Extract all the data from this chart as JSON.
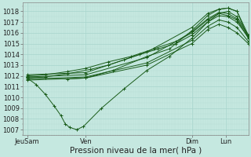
{
  "xlabel": "Pression niveau de la mer( hPa )",
  "ylim": [
    1006.5,
    1018.8
  ],
  "yticks": [
    1007,
    1008,
    1009,
    1010,
    1011,
    1012,
    1013,
    1014,
    1015,
    1016,
    1017,
    1018
  ],
  "xlim": [
    0,
    100
  ],
  "xtick_labels": [
    "JeuSam",
    "Ven",
    "Dim",
    "Lun"
  ],
  "xtick_positions": [
    2,
    28,
    75,
    90
  ],
  "bg_color": "#c5e8e0",
  "grid_color_major": "#a8d5cc",
  "grid_color_minor": "#b8ddd6",
  "line_color": "#1a5c1a",
  "marker": "+",
  "marker_size": 2.5,
  "line_width": 0.7,
  "xlabel_fontsize": 7.5,
  "tick_fontsize": 6,
  "lines": [
    {
      "x": [
        2,
        10,
        20,
        28,
        40,
        55,
        65,
        75,
        82,
        87,
        91,
        95,
        100
      ],
      "y": [
        1011.9,
        1011.8,
        1011.7,
        1011.8,
        1012.5,
        1013.8,
        1014.5,
        1016.2,
        1017.6,
        1018.2,
        1018.3,
        1018.0,
        1015.5
      ]
    },
    {
      "x": [
        2,
        6,
        10,
        14,
        17,
        19,
        21,
        24,
        27,
        35,
        45,
        55,
        65,
        75,
        82,
        87,
        91,
        95,
        100
      ],
      "y": [
        1011.8,
        1011.2,
        1010.3,
        1009.2,
        1008.3,
        1007.5,
        1007.2,
        1007.0,
        1007.3,
        1009.0,
        1010.8,
        1012.5,
        1013.8,
        1015.5,
        1017.0,
        1017.8,
        1018.0,
        1017.5,
        1015.8
      ]
    },
    {
      "x": [
        2,
        28,
        55,
        75,
        82,
        87,
        91,
        95,
        100
      ],
      "y": [
        1012.1,
        1012.3,
        1014.2,
        1016.5,
        1017.8,
        1018.2,
        1018.3,
        1018.0,
        1015.8
      ]
    },
    {
      "x": [
        2,
        28,
        55,
        75,
        82,
        87,
        91,
        95,
        100
      ],
      "y": [
        1011.7,
        1011.9,
        1013.2,
        1015.3,
        1016.6,
        1017.2,
        1017.0,
        1016.5,
        1015.2
      ]
    },
    {
      "x": [
        2,
        28,
        55,
        75,
        82,
        87,
        91,
        95,
        100
      ],
      "y": [
        1011.9,
        1012.1,
        1013.7,
        1016.0,
        1017.2,
        1017.8,
        1017.6,
        1017.2,
        1015.5
      ]
    },
    {
      "x": [
        2,
        10,
        20,
        30,
        38,
        45,
        52,
        60,
        68,
        75,
        82,
        87,
        91,
        95,
        100
      ],
      "y": [
        1011.8,
        1011.9,
        1012.2,
        1012.6,
        1013.0,
        1013.5,
        1014.0,
        1014.5,
        1015.0,
        1015.8,
        1017.0,
        1017.6,
        1017.5,
        1017.0,
        1015.6
      ]
    },
    {
      "x": [
        2,
        10,
        20,
        28,
        38,
        48,
        58,
        68,
        75,
        82,
        87,
        91,
        95,
        100
      ],
      "y": [
        1012.0,
        1012.1,
        1012.4,
        1012.7,
        1013.3,
        1013.8,
        1014.5,
        1015.2,
        1016.1,
        1017.3,
        1017.9,
        1017.8,
        1017.3,
        1015.7
      ]
    },
    {
      "x": [
        2,
        28,
        55,
        75,
        82,
        87,
        91,
        95,
        100
      ],
      "y": [
        1011.6,
        1011.8,
        1013.0,
        1015.0,
        1016.3,
        1016.8,
        1016.5,
        1016.0,
        1015.0
      ]
    }
  ]
}
